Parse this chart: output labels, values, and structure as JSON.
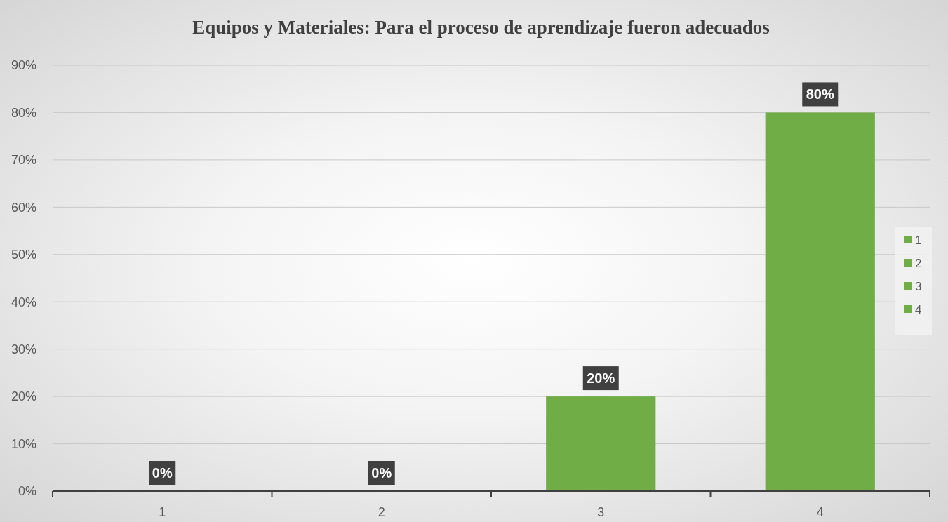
{
  "chart_data": {
    "type": "bar",
    "title": "Equipos y Materiales: Para el proceso de aprendizaje fueron adecuados",
    "categories": [
      "1",
      "2",
      "3",
      "4"
    ],
    "stacked": true,
    "series": [
      {
        "name": "1",
        "color": "#70ad47",
        "values": [
          0,
          null,
          null,
          null
        ],
        "value_labels": [
          "0%",
          null,
          null,
          null
        ]
      },
      {
        "name": "2",
        "color": "#70ad47",
        "values": [
          null,
          0,
          null,
          null
        ],
        "value_labels": [
          null,
          "0%",
          null,
          null
        ]
      },
      {
        "name": "3",
        "color": "#70ad47",
        "values": [
          null,
          null,
          20,
          null
        ],
        "value_labels": [
          null,
          null,
          "20%",
          null
        ]
      },
      {
        "name": "4",
        "color": "#70ad47",
        "values": [
          null,
          null,
          null,
          80
        ],
        "value_labels": [
          null,
          null,
          null,
          "80%"
        ]
      }
    ],
    "ylim": [
      0,
      90
    ],
    "yticks": [
      {
        "value": 0,
        "label": "0%"
      },
      {
        "value": 10,
        "label": "10%"
      },
      {
        "value": 20,
        "label": "20%"
      },
      {
        "value": 30,
        "label": "30%"
      },
      {
        "value": 40,
        "label": "40%"
      },
      {
        "value": 50,
        "label": "50%"
      },
      {
        "value": 60,
        "label": "60%"
      },
      {
        "value": 70,
        "label": "70%"
      },
      {
        "value": 80,
        "label": "80%"
      },
      {
        "value": 90,
        "label": "90%"
      }
    ],
    "grid": "y",
    "legend": "right"
  }
}
